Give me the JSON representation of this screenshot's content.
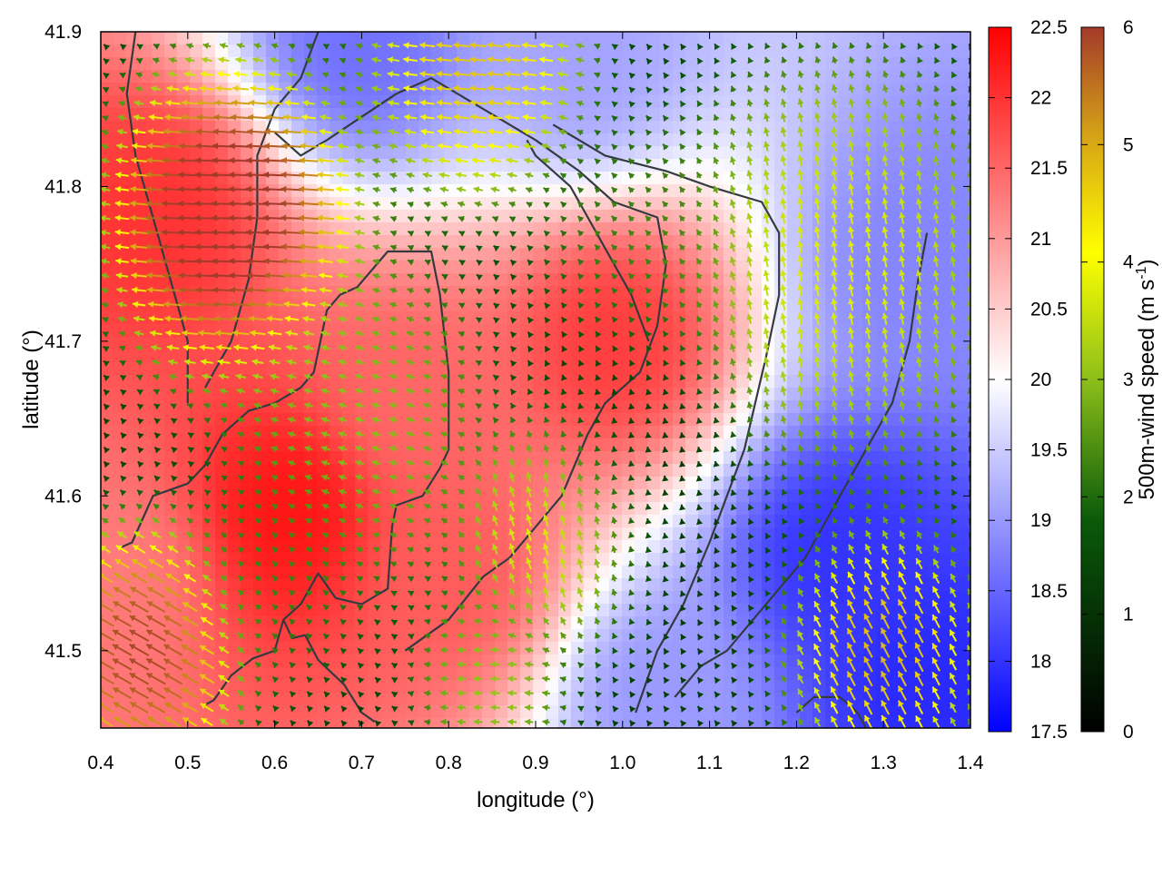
{
  "chart_data": {
    "type": "heatmap",
    "title": "",
    "xlabel": "longitude (°)",
    "ylabel": "latitude (°)",
    "xlim": [
      0.4,
      1.4
    ],
    "ylim": [
      41.45,
      41.9
    ],
    "x_ticks": [
      "0.4",
      "0.5",
      "0.6",
      "0.7",
      "0.8",
      "0.9",
      "1.0",
      "1.1",
      "1.2",
      "1.3",
      "1.4"
    ],
    "y_ticks": [
      "41.5",
      "41.6",
      "41.7",
      "41.8",
      "41.9"
    ],
    "x_tick_values": [
      0.4,
      0.5,
      0.6,
      0.7,
      0.8,
      0.9,
      1.0,
      1.1,
      1.2,
      1.3,
      1.4
    ],
    "y_tick_values": [
      41.5,
      41.6,
      41.7,
      41.8,
      41.9
    ],
    "temperature_colorbar": {
      "range": [
        17.5,
        22.5
      ],
      "ticks": [
        "17.5",
        "18",
        "18.5",
        "19",
        "19.5",
        "20",
        "20.5",
        "21",
        "21.5",
        "22",
        "22.5"
      ],
      "colors": [
        "#0000ff",
        "#ffffff",
        "#ff0000"
      ]
    },
    "wind_colorbar": {
      "label": "500m-wind speed (m s",
      "label_sup": "-1",
      "label_end": ")",
      "range": [
        0,
        6
      ],
      "ticks": [
        "0",
        "1",
        "2",
        "3",
        "4",
        "5",
        "6"
      ],
      "colors": [
        "#000000",
        "#0a5a0a",
        "#8cbf1a",
        "#ffff00",
        "#d4a017",
        "#a33a2a"
      ]
    },
    "temperature_centers": [
      {
        "lon": 0.62,
        "lat": 41.59,
        "t": 22.3
      },
      {
        "lon": 0.47,
        "lat": 41.78,
        "t": 22.0
      },
      {
        "lon": 0.99,
        "lat": 41.7,
        "t": 21.9
      },
      {
        "lon": 0.8,
        "lat": 41.55,
        "t": 21.6
      },
      {
        "lon": 0.75,
        "lat": 41.66,
        "t": 21.5
      },
      {
        "lon": 0.42,
        "lat": 41.55,
        "t": 21.3
      },
      {
        "lon": 1.25,
        "lat": 41.56,
        "t": 18.0
      },
      {
        "lon": 1.35,
        "lat": 41.48,
        "t": 17.9
      },
      {
        "lon": 1.35,
        "lat": 41.75,
        "t": 18.8
      },
      {
        "lon": 0.7,
        "lat": 41.89,
        "t": 18.6
      },
      {
        "lon": 0.95,
        "lat": 41.88,
        "t": 19.1
      },
      {
        "lon": 1.05,
        "lat": 41.47,
        "t": 19.0
      }
    ],
    "wind_regions": [
      {
        "lon": 0.55,
        "lat": 41.78,
        "u": -5.8,
        "v": 0.15,
        "radius": 0.09
      },
      {
        "lon": 0.45,
        "lat": 41.5,
        "u": -4.5,
        "v": 2.5,
        "radius": 0.07
      },
      {
        "lon": 0.83,
        "lat": 41.88,
        "u": -3.8,
        "v": 0.3,
        "radius": 0.08
      },
      {
        "lon": 1.3,
        "lat": 41.5,
        "u": -1.8,
        "v": 3.5,
        "radius": 0.07
      },
      {
        "lon": 0.92,
        "lat": 41.58,
        "u": -1.0,
        "v": 3.2,
        "radius": 0.07
      },
      {
        "lon": 1.25,
        "lat": 41.75,
        "u": -0.5,
        "v": 2.8,
        "radius": 0.12
      },
      {
        "lon": 1.02,
        "lat": 41.76,
        "u": -1.0,
        "v": 1.0,
        "radius": 0.08
      },
      {
        "lon": 0.7,
        "lat": 41.65,
        "u": -2.0,
        "v": 0.5,
        "radius": 0.1
      },
      {
        "lon": 0.6,
        "lat": 41.55,
        "u": -1.0,
        "v": 0.9,
        "radius": 0.07
      },
      {
        "lon": 0.85,
        "lat": 41.48,
        "u": -2.2,
        "v": 0.0,
        "radius": 0.06
      },
      {
        "lon": 1.0,
        "lat": 41.62,
        "u": 0.0,
        "v": 0.6,
        "radius": 0.1
      }
    ],
    "coastlines": [
      [
        [
          0.42,
          41.566
        ],
        [
          0.436,
          41.57
        ],
        [
          0.46,
          41.6
        ],
        [
          0.5,
          41.608
        ],
        [
          0.52,
          41.62
        ],
        [
          0.54,
          41.64
        ],
        [
          0.57,
          41.655
        ],
        [
          0.6,
          41.66
        ],
        [
          0.63,
          41.67
        ],
        [
          0.645,
          41.68
        ],
        [
          0.66,
          41.72
        ],
        [
          0.675,
          41.73
        ],
        [
          0.695,
          41.735
        ],
        [
          0.73,
          41.758
        ],
        [
          0.78,
          41.758
        ],
        [
          0.79,
          41.73
        ],
        [
          0.8,
          41.68
        ],
        [
          0.8,
          41.63
        ],
        [
          0.79,
          41.618
        ],
        [
          0.77,
          41.6
        ],
        [
          0.74,
          41.594
        ],
        [
          0.735,
          41.58
        ],
        [
          0.73,
          41.54
        ],
        [
          0.7,
          41.53
        ],
        [
          0.67,
          41.534
        ],
        [
          0.65,
          41.55
        ],
        [
          0.63,
          41.53
        ],
        [
          0.61,
          41.52
        ],
        [
          0.6,
          41.5
        ],
        [
          0.575,
          41.495
        ],
        [
          0.55,
          41.484
        ],
        [
          0.53,
          41.468
        ],
        [
          0.52,
          41.465
        ]
      ],
      [
        [
          0.61,
          41.52
        ],
        [
          0.62,
          41.508
        ],
        [
          0.635,
          41.51
        ],
        [
          0.65,
          41.494
        ],
        [
          0.68,
          41.478
        ],
        [
          0.7,
          41.46
        ],
        [
          0.715,
          41.454
        ]
      ],
      [
        [
          0.75,
          41.5
        ],
        [
          0.8,
          41.52
        ],
        [
          0.84,
          41.548
        ],
        [
          0.87,
          41.56
        ],
        [
          0.9,
          41.58
        ],
        [
          0.93,
          41.6
        ],
        [
          0.96,
          41.64
        ],
        [
          0.98,
          41.66
        ],
        [
          1.0,
          41.67
        ],
        [
          1.02,
          41.68
        ],
        [
          1.04,
          41.71
        ],
        [
          1.05,
          41.75
        ],
        [
          1.04,
          41.78
        ],
        [
          0.99,
          41.79
        ],
        [
          0.95,
          41.81
        ],
        [
          0.9,
          41.83
        ],
        [
          0.84,
          41.85
        ],
        [
          0.78,
          41.87
        ],
        [
          0.74,
          41.86
        ],
        [
          0.7,
          41.845
        ],
        [
          0.66,
          41.83
        ],
        [
          0.63,
          41.82
        ],
        [
          0.6,
          41.835
        ]
      ],
      [
        [
          0.89,
          41.83
        ],
        [
          0.9,
          41.82
        ],
        [
          0.94,
          41.8
        ],
        [
          0.96,
          41.78
        ],
        [
          0.99,
          41.75
        ],
        [
          1.01,
          41.73
        ],
        [
          1.03,
          41.7
        ]
      ],
      [
        [
          1.015,
          41.46
        ],
        [
          1.04,
          41.5
        ],
        [
          1.07,
          41.53
        ],
        [
          1.1,
          41.57
        ],
        [
          1.12,
          41.6
        ],
        [
          1.14,
          41.63
        ],
        [
          1.165,
          41.69
        ],
        [
          1.18,
          41.73
        ],
        [
          1.18,
          41.77
        ],
        [
          1.16,
          41.79
        ],
        [
          1.1,
          41.8
        ],
        [
          1.05,
          41.81
        ],
        [
          0.98,
          41.82
        ],
        [
          0.95,
          41.83
        ],
        [
          0.92,
          41.84
        ]
      ],
      [
        [
          1.06,
          41.47
        ],
        [
          1.09,
          41.49
        ],
        [
          1.12,
          41.5
        ],
        [
          1.15,
          41.52
        ],
        [
          1.18,
          41.54
        ],
        [
          1.21,
          41.56
        ],
        [
          1.25,
          41.6
        ],
        [
          1.28,
          41.63
        ],
        [
          1.31,
          41.66
        ],
        [
          1.33,
          41.7
        ],
        [
          1.34,
          41.74
        ],
        [
          1.35,
          41.77
        ]
      ],
      [
        [
          0.5,
          41.66
        ],
        [
          0.5,
          41.7
        ],
        [
          0.48,
          41.74
        ],
        [
          0.46,
          41.78
        ],
        [
          0.44,
          41.82
        ],
        [
          0.43,
          41.86
        ],
        [
          0.44,
          41.9
        ]
      ],
      [
        [
          0.52,
          41.67
        ],
        [
          0.55,
          41.7
        ],
        [
          0.57,
          41.74
        ],
        [
          0.58,
          41.78
        ],
        [
          0.58,
          41.82
        ],
        [
          0.6,
          41.85
        ],
        [
          0.63,
          41.87
        ],
        [
          0.65,
          41.9
        ]
      ],
      [
        [
          1.2,
          41.46
        ],
        [
          1.22,
          41.47
        ],
        [
          1.25,
          41.47
        ],
        [
          1.27,
          41.46
        ],
        [
          1.28,
          41.45
        ]
      ]
    ]
  }
}
